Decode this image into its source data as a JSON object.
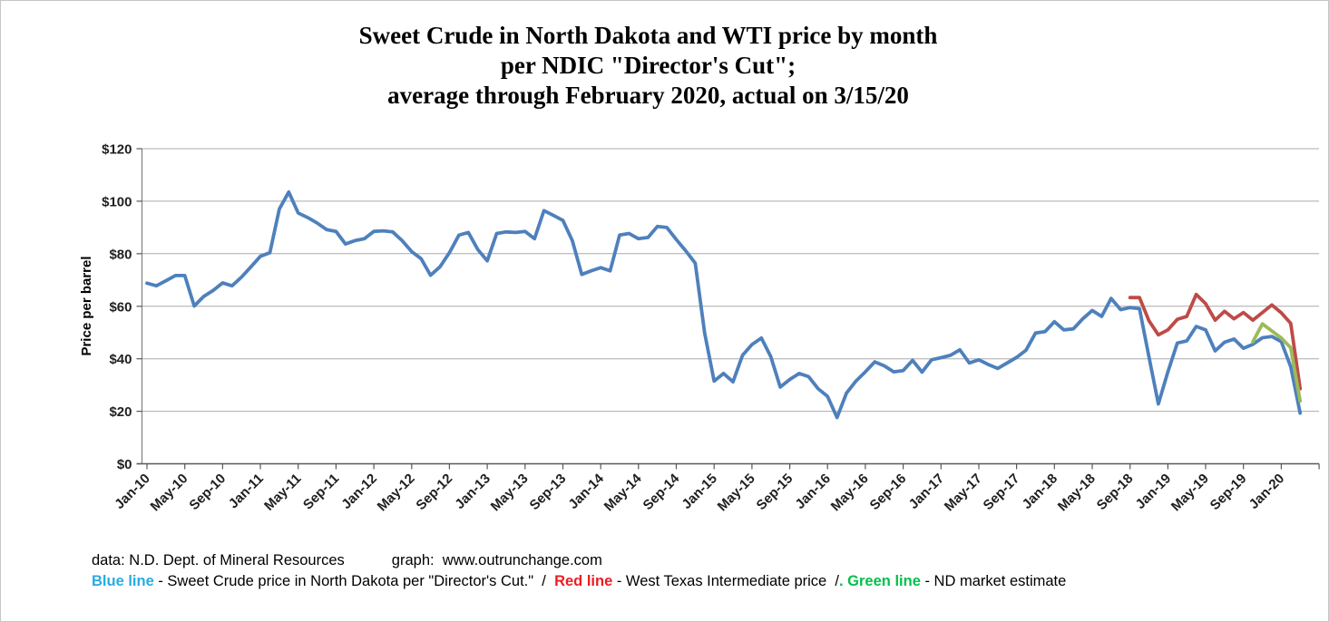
{
  "title": {
    "lines": [
      "Sweet Crude in North Dakota and WTI price by month",
      "per NDIC \"Director's Cut\";",
      "average through February 2020, actual on 3/15/20"
    ]
  },
  "footer": {
    "source_label": "data: N.D. Dept. of Mineral Resources",
    "graph_label": "graph:  www.outrunchange.com",
    "legend": {
      "blue_term": "Blue line",
      "blue_desc": " - Sweet Crude price in North Dakota per \"Director's Cut.\"  ",
      "sep1": "/  ",
      "red_term": "Red line",
      "red_desc": " - West Texas Intermediate price  ",
      "sep2": "/",
      "green_mark": ". ",
      "green_term": "Green line",
      "green_desc": " - ND market estimate"
    }
  },
  "chart_data": {
    "type": "line",
    "title": "Sweet Crude in North Dakota and WTI price by month per NDIC \"Director's Cut\"; average through February 2020, actual on 3/15/20",
    "xlabel": "",
    "ylabel": "Price per barrel",
    "ylim": [
      0,
      120
    ],
    "y_tick_values": [
      0,
      20,
      40,
      60,
      80,
      100,
      120
    ],
    "y_tick_labels": [
      "$0",
      "$20",
      "$40",
      "$60",
      "$80",
      "$100",
      "$120"
    ],
    "grid": "horizontal",
    "legend_position": "below",
    "x_unit": "month",
    "x_start": "Jan-10",
    "x_end": "Mar-20",
    "months_total": 123,
    "x_tick_interval_months": 4,
    "x_tick_labels": [
      "Jan-10",
      "May-10",
      "Sep-10",
      "Jan-11",
      "May-11",
      "Sep-11",
      "Jan-12",
      "May-12",
      "Sep-12",
      "Jan-13",
      "May-13",
      "Sep-13",
      "Jan-14",
      "May-14",
      "Sep-14",
      "Jan-15",
      "May-15",
      "Sep-15",
      "Jan-16",
      "May-16",
      "Sep-16",
      "Jan-17",
      "May-17",
      "Sep-17",
      "Jan-18",
      "May-18",
      "Sep-18",
      "Jan-19",
      "May-19",
      "Sep-19",
      "Jan-20"
    ],
    "series": [
      {
        "name": "Sweet Crude price in North Dakota per \"Director's Cut.\"",
        "color": "#4E80BC",
        "start_month": "Jan-10",
        "start_index": 0,
        "values": [
          68.8,
          67.8,
          69.7,
          71.7,
          71.7,
          60.1,
          63.7,
          66,
          68.9,
          67.8,
          71.1,
          75,
          79,
          80.4,
          97,
          103.5,
          95.5,
          93.8,
          91.7,
          89.2,
          88.5,
          83.7,
          85,
          85.7,
          88.5,
          88.7,
          88.3,
          85,
          80.8,
          78.1,
          71.8,
          75,
          80.4,
          87.1,
          88.1,
          81.6,
          77.3,
          87.7,
          88.3,
          88.1,
          88.5,
          85.7,
          96.4,
          94.6,
          92.7,
          85,
          72.1,
          73.5,
          74.7,
          73.5,
          87.1,
          87.7,
          85.7,
          86.2,
          90.4,
          90,
          85.4,
          81.1,
          76.4,
          49.7,
          31.5,
          34.4,
          31.2,
          41.3,
          45.4,
          47.9,
          40.8,
          29.2,
          32.1,
          34.4,
          33.2,
          28.6,
          25.7,
          17.6,
          26.9,
          31.5,
          35,
          38.8,
          37.3,
          35,
          35.5,
          39.4,
          34.9,
          39.6,
          40.4,
          41.3,
          43.4,
          38.4,
          39.6,
          37.8,
          36.3,
          38.4,
          40.5,
          43.3,
          49.8,
          50.3,
          54.1,
          51,
          51.4,
          55.2,
          58.4,
          56.1,
          63,
          58.7,
          59.5,
          59.1,
          40.8,
          22.8,
          35,
          46,
          46.8,
          52.3,
          51,
          43,
          46.3,
          47.5,
          44,
          45.5,
          48,
          48.5,
          46.5,
          37,
          19.3
        ]
      },
      {
        "name": "West Texas Intermediate price",
        "color": "#BE4B48",
        "start_month": "Sep-18",
        "start_index": 104,
        "values": [
          63.3,
          63.3,
          54.5,
          49.1,
          51,
          55,
          56.1,
          64.5,
          61,
          54.7,
          58.1,
          55.2,
          57.6,
          54.7,
          57.6,
          60.5,
          57.5,
          53.5,
          28.6
        ]
      },
      {
        "name": "ND market estimate",
        "color": "#9BBB59",
        "start_month": "Oct-19",
        "start_index": 117,
        "values": [
          46.5,
          53.3,
          50.6,
          47.9,
          44.2,
          23.9
        ]
      }
    ]
  }
}
